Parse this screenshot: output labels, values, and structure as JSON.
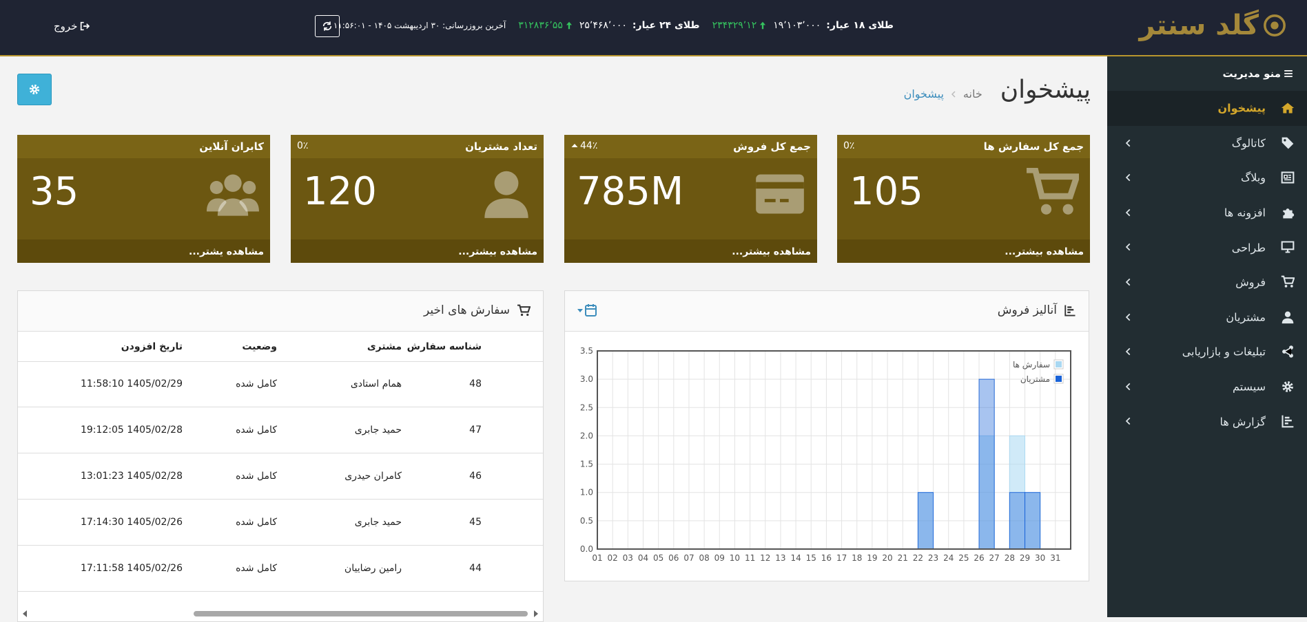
{
  "header": {
    "logo": "گلد سنتر",
    "ticker": [
      {
        "label": "طلای ۱۸ عیار:",
        "price": "۱۹٬۱۰۳٬۰۰۰",
        "change": "۲۳۴۳۲۹٬۱۲"
      },
      {
        "label": "طلای ۲۴ عیار:",
        "price": "۲۵٬۴۶۸٬۰۰۰",
        "change": "۳۱۲۸۳۶٬۵۵"
      }
    ],
    "last_update": "آخرین بروزرسانی: ۳۰ اردیبهشت ۱۴۰۵ - ۱۱:۵۶:۰۱",
    "logout": "خروج"
  },
  "sidebar": {
    "title": "منو مدیریت",
    "items": [
      "پیشخوان",
      "کاتالوگ",
      "وبلاگ",
      "افزونه ها",
      "طراحی",
      "فروش",
      "مشتریان",
      "تبلیغات و بازاریابی",
      "سیستم",
      "گزارش ها"
    ]
  },
  "page": {
    "title": "پیشخوان",
    "breadcrumb": [
      "خانه",
      "پیشخوان"
    ]
  },
  "stats": [
    {
      "title": "جمع کل سفارش ها",
      "change": "0٪",
      "value": "105",
      "link": "مشاهده بیشتر..."
    },
    {
      "title": "جمع کل فروش",
      "change": "44٪",
      "value": "785M",
      "link": "مشاهده بیشتر..."
    },
    {
      "title": "تعداد مشتریان",
      "change": "0٪",
      "value": "120",
      "link": "مشاهده بیشتر..."
    },
    {
      "title": "کابران آنلاین",
      "value": "35",
      "link": "مشاهده یشتر..."
    }
  ],
  "sales_panel": {
    "title": "آنالیز فروش"
  },
  "chart_data": {
    "type": "bar",
    "categories": [
      "01",
      "02",
      "03",
      "04",
      "05",
      "06",
      "07",
      "08",
      "09",
      "10",
      "11",
      "12",
      "13",
      "14",
      "15",
      "16",
      "17",
      "18",
      "19",
      "20",
      "21",
      "22",
      "23",
      "24",
      "25",
      "26",
      "27",
      "28",
      "29",
      "30",
      "31"
    ],
    "series": [
      {
        "name": "سفارش ها",
        "color": "#a9d8f2",
        "values": [
          0,
          0,
          0,
          0,
          0,
          0,
          0,
          0,
          0,
          0,
          0,
          0,
          0,
          0,
          0,
          0,
          0,
          0,
          0,
          0,
          0,
          1,
          0,
          0,
          0,
          2,
          0,
          2,
          1,
          0,
          0
        ]
      },
      {
        "name": "مشتریان",
        "color": "#1a63d8",
        "values": [
          0,
          0,
          0,
          0,
          0,
          0,
          0,
          0,
          0,
          0,
          0,
          0,
          0,
          0,
          0,
          0,
          0,
          0,
          0,
          0,
          0,
          1,
          0,
          0,
          0,
          3,
          0,
          1,
          1,
          0,
          0
        ]
      }
    ],
    "ylim": [
      0,
      3.5
    ],
    "yticks": [
      {
        "value": 0,
        "label": "0.0"
      },
      0.5,
      {
        "value": 1,
        "label": "1.0"
      },
      1.5,
      {
        "value": 2,
        "label": "2.0"
      },
      2.5,
      {
        "value": 3,
        "label": "3.0"
      },
      3.5
    ],
    "grid": true,
    "legend": "upper right"
  },
  "orders": {
    "title": "سفارش های اخیر",
    "columns": [
      "شناسه سفارش",
      "مشتری",
      "وضعیت",
      "تاریخ افزودن"
    ],
    "rows": [
      [
        "48",
        "همام استادی",
        "کامل شده",
        "1405/02/29 11:58:10"
      ],
      [
        "47",
        "حمید جابری",
        "کامل شده",
        "1405/02/28 19:12:05"
      ],
      [
        "46",
        "کامران حیدری",
        "کامل شده",
        "1405/02/28 13:01:23"
      ],
      [
        "45",
        "حمید جابری",
        "کامل شده",
        "1405/02/26 17:14:30"
      ],
      [
        "44",
        "رامین رضاییان",
        "کامل شده",
        "1405/02/26 17:11:58"
      ]
    ]
  }
}
